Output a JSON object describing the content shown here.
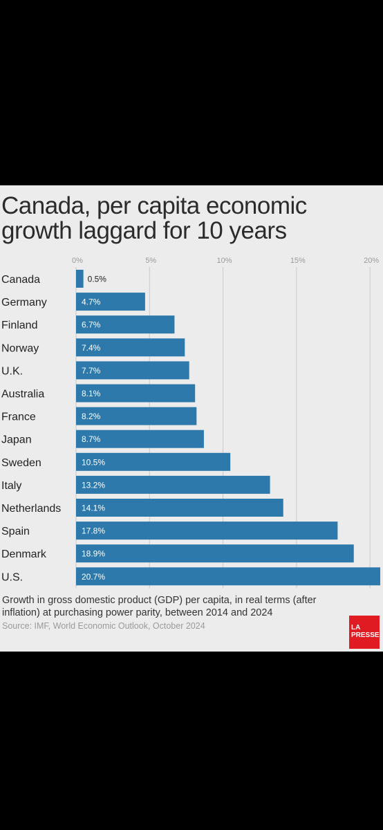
{
  "chart_data": {
    "type": "bar",
    "orientation": "horizontal",
    "title": "Canada, per capita economic growth laggard for 10 years",
    "categories": [
      "Canada",
      "Germany",
      "Finland",
      "Norway",
      "U.K.",
      "Australia",
      "France",
      "Japan",
      "Sweden",
      "Italy",
      "Netherlands",
      "Spain",
      "Denmark",
      "U.S."
    ],
    "values": [
      0.5,
      4.7,
      6.7,
      7.4,
      7.7,
      8.1,
      8.2,
      8.7,
      10.5,
      13.2,
      14.1,
      17.8,
      18.9,
      20.7
    ],
    "value_labels": [
      "0.5%",
      "4.7%",
      "6.7%",
      "7.4%",
      "7.7%",
      "8.1%",
      "8.2%",
      "8.7%",
      "10.5%",
      "13.2%",
      "14.1%",
      "17.8%",
      "18.9%",
      "20.7%"
    ],
    "xticks": [
      0,
      5,
      10,
      15,
      20
    ],
    "xtick_labels": [
      "0%",
      "5%",
      "10%",
      "15%",
      "20%"
    ],
    "xlim": [
      0,
      20.7
    ],
    "xlabel": "",
    "ylabel": "",
    "grid": true,
    "bar_color": "#2e79ab",
    "caption": "Growth in gross domestic product (GDP) per capita, in real terms (after inflation) at purchasing power parity, between 2014 and 2024",
    "source": "Source: IMF, World Economic Outlook, October 2024"
  },
  "logo": {
    "line1": "LA",
    "line2": "PRESSE",
    "color": "#e01b22"
  }
}
